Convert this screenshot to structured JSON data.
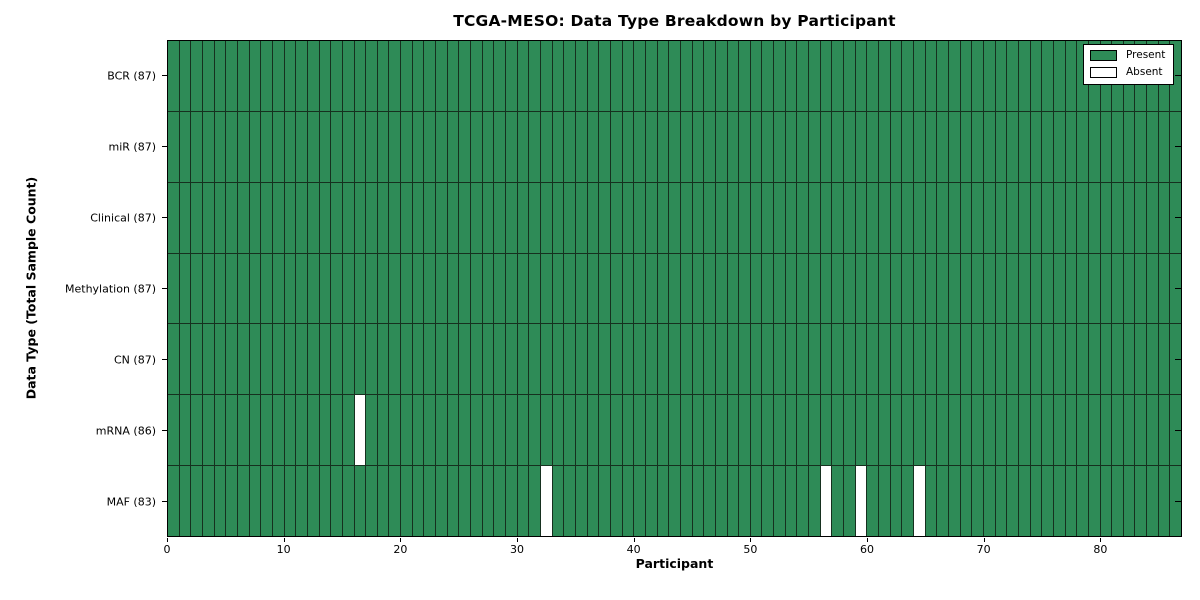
{
  "chart_data": {
    "type": "heatmap",
    "title": "TCGA-MESO: Data Type Breakdown by Participant",
    "xlabel": "Participant",
    "ylabel": "Data Type (Total Sample Count)",
    "xlim": [
      0,
      87
    ],
    "x_ticks": [
      0,
      10,
      20,
      30,
      40,
      50,
      60,
      70,
      80
    ],
    "n_participants": 87,
    "grid": "off",
    "legend_position": "upper right",
    "rows": [
      {
        "data_type": "BCR",
        "label": "BCR (87)",
        "present_count": 87,
        "absent_participants": []
      },
      {
        "data_type": "miR",
        "label": "miR (87)",
        "present_count": 87,
        "absent_participants": []
      },
      {
        "data_type": "Clinical",
        "label": "Clinical (87)",
        "present_count": 87,
        "absent_participants": []
      },
      {
        "data_type": "Methylation",
        "label": "Methylation (87)",
        "present_count": 87,
        "absent_participants": []
      },
      {
        "data_type": "CN",
        "label": "CN (87)",
        "present_count": 87,
        "absent_participants": []
      },
      {
        "data_type": "mRNA",
        "label": "mRNA (86)",
        "present_count": 86,
        "absent_participants": [
          16
        ]
      },
      {
        "data_type": "MAF",
        "label": "MAF (83)",
        "present_count": 83,
        "absent_participants": [
          32,
          56,
          59,
          64
        ]
      }
    ],
    "legend": [
      {
        "label": "Present",
        "color": "#2e8b57"
      },
      {
        "label": "Absent",
        "color": "#ffffff"
      }
    ],
    "colors": {
      "present": "#2e8b57",
      "absent": "#ffffff",
      "cell_border": "#16301f",
      "axis": "#000000",
      "background": "#ffffff"
    }
  }
}
